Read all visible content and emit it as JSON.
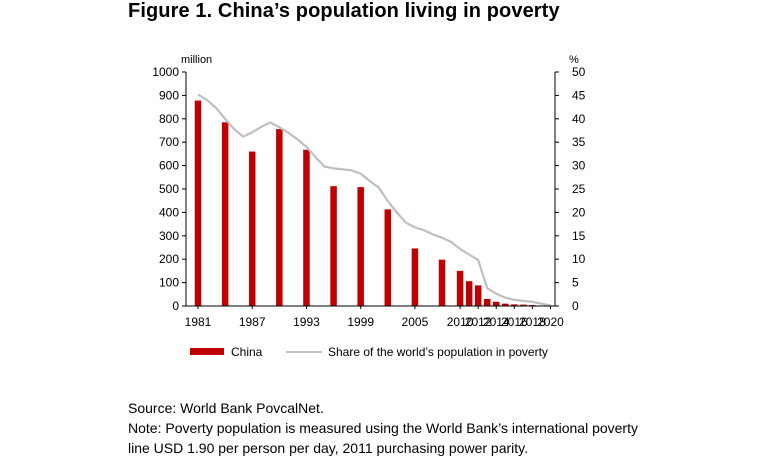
{
  "figure": {
    "title": "Figure 1. China’s population living in poverty"
  },
  "notes": {
    "source": "Source: World Bank PovcalNet.",
    "note_line1": "Note: Poverty population is measured using the World Bank’s international poverty",
    "note_line2": "line USD 1.90 per person per day, 2011 purchasing power parity."
  },
  "chart_data": {
    "type": "bar",
    "title": "",
    "y_left_label": "million",
    "y_right_label": "%",
    "y_left_lim": [
      0,
      1000
    ],
    "y_right_lim": [
      0,
      50
    ],
    "y_left_ticks": [
      0,
      100,
      200,
      300,
      400,
      500,
      600,
      700,
      800,
      900,
      1000
    ],
    "y_right_ticks": [
      0,
      5,
      10,
      15,
      20,
      25,
      30,
      35,
      40,
      45,
      50
    ],
    "x_range": [
      1981,
      2020
    ],
    "x_tick_labels": [
      "1981",
      "1987",
      "1993",
      "1999",
      "2005",
      "2010",
      "2012",
      "2014",
      "2016",
      "2018",
      "2020"
    ],
    "grid": false,
    "legend_position": "bottom",
    "series": [
      {
        "name": "China",
        "kind": "bar",
        "axis": "left",
        "color": "#c00000",
        "points": [
          {
            "x": 1981,
            "y": 878
          },
          {
            "x": 1984,
            "y": 785
          },
          {
            "x": 1987,
            "y": 660
          },
          {
            "x": 1990,
            "y": 756
          },
          {
            "x": 1993,
            "y": 668
          },
          {
            "x": 1996,
            "y": 512
          },
          {
            "x": 1999,
            "y": 508
          },
          {
            "x": 2002,
            "y": 413
          },
          {
            "x": 2005,
            "y": 246
          },
          {
            "x": 2008,
            "y": 198
          },
          {
            "x": 2010,
            "y": 150
          },
          {
            "x": 2011,
            "y": 106
          },
          {
            "x": 2012,
            "y": 88
          },
          {
            "x": 2013,
            "y": 30
          },
          {
            "x": 2014,
            "y": 18
          },
          {
            "x": 2015,
            "y": 10
          },
          {
            "x": 2016,
            "y": 7
          },
          {
            "x": 2017,
            "y": 6
          },
          {
            "x": 2018,
            "y": 4
          },
          {
            "x": 2019,
            "y": 1
          },
          {
            "x": 2020,
            "y": 0.5
          }
        ]
      },
      {
        "name": "Share of the world’s population in poverty",
        "kind": "line",
        "axis": "right",
        "color": "#bfbfbf",
        "points": [
          {
            "x": 1981,
            "y": 45.2
          },
          {
            "x": 1982,
            "y": 44.0
          },
          {
            "x": 1983,
            "y": 42.3
          },
          {
            "x": 1984,
            "y": 40.0
          },
          {
            "x": 1985,
            "y": 37.8
          },
          {
            "x": 1986,
            "y": 36.2
          },
          {
            "x": 1987,
            "y": 37.1
          },
          {
            "x": 1988,
            "y": 38.3
          },
          {
            "x": 1989,
            "y": 39.2
          },
          {
            "x": 1990,
            "y": 38.2
          },
          {
            "x": 1991,
            "y": 37.0
          },
          {
            "x": 1992,
            "y": 35.6
          },
          {
            "x": 1993,
            "y": 34.0
          },
          {
            "x": 1994,
            "y": 31.8
          },
          {
            "x": 1995,
            "y": 29.8
          },
          {
            "x": 1996,
            "y": 29.4
          },
          {
            "x": 1997,
            "y": 29.2
          },
          {
            "x": 1998,
            "y": 29.0
          },
          {
            "x": 1999,
            "y": 28.3
          },
          {
            "x": 2000,
            "y": 26.7
          },
          {
            "x": 2001,
            "y": 25.3
          },
          {
            "x": 2002,
            "y": 22.4
          },
          {
            "x": 2003,
            "y": 20.0
          },
          {
            "x": 2004,
            "y": 17.8
          },
          {
            "x": 2005,
            "y": 16.8
          },
          {
            "x": 2006,
            "y": 16.2
          },
          {
            "x": 2007,
            "y": 15.3
          },
          {
            "x": 2008,
            "y": 14.6
          },
          {
            "x": 2009,
            "y": 13.7
          },
          {
            "x": 2010,
            "y": 12.2
          },
          {
            "x": 2011,
            "y": 11.0
          },
          {
            "x": 2012,
            "y": 9.8
          },
          {
            "x": 2013,
            "y": 3.8
          },
          {
            "x": 2014,
            "y": 2.6
          },
          {
            "x": 2015,
            "y": 1.8
          },
          {
            "x": 2016,
            "y": 1.3
          },
          {
            "x": 2017,
            "y": 1.1
          },
          {
            "x": 2018,
            "y": 0.9
          },
          {
            "x": 2019,
            "y": 0.5
          },
          {
            "x": 2020,
            "y": 0.1
          }
        ]
      }
    ]
  }
}
